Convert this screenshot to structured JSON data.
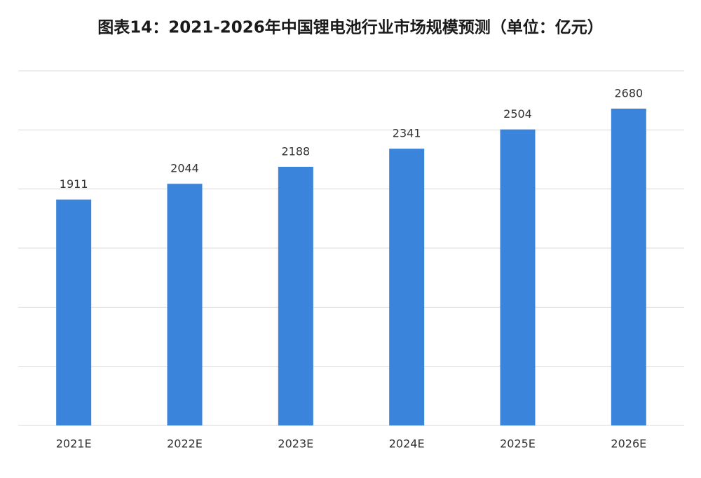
{
  "chart_data": {
    "type": "bar",
    "title": "图表14：2021-2026年中国锂电池行业市场规模预测（单位：亿元）",
    "categories": [
      "2021E",
      "2022E",
      "2023E",
      "2024E",
      "2025E",
      "2026E"
    ],
    "values": [
      1911,
      2044,
      2188,
      2341,
      2504,
      2680
    ],
    "color": "#3b84dc",
    "ylim": [
      0,
      3000
    ],
    "yticks": [
      0,
      500,
      1000,
      1500,
      2000,
      2500,
      3000
    ],
    "grid": true
  }
}
